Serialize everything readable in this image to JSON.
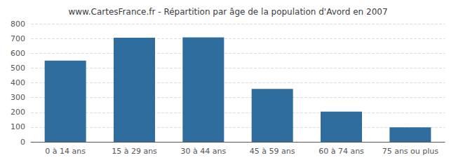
{
  "chart_data": {
    "type": "bar",
    "title": "www.CartesFrance.fr - Répartition par âge de la population d'Avord en 2007",
    "categories": [
      "0 à 14 ans",
      "15 à 29 ans",
      "30 à 44 ans",
      "45 à 59 ans",
      "60 à 74 ans",
      "75 ans ou plus"
    ],
    "values": [
      550,
      705,
      708,
      358,
      205,
      98
    ],
    "color": "#2e6d9e",
    "ylim": [
      0,
      800
    ],
    "yticks": [
      0,
      100,
      200,
      300,
      400,
      500,
      600,
      700,
      800
    ],
    "grid": true
  }
}
